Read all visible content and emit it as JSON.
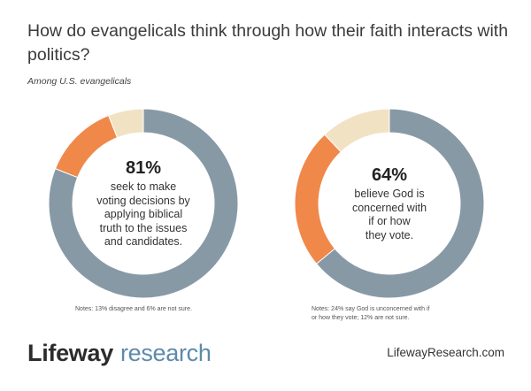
{
  "header": {
    "title": "How do evangelicals think through how their faith interacts with politics?",
    "subtitle": "Among U.S. evangelicals"
  },
  "chart_data": [
    {
      "type": "pie",
      "donut": true,
      "segments": [
        {
          "label": "",
          "value": 81,
          "color": "#8899a6"
        },
        {
          "label": "",
          "value": 13,
          "color": "#f0884a"
        },
        {
          "label": "",
          "value": 6,
          "color": "#f2e2c4"
        }
      ],
      "center_value": "81%",
      "center_lines": [
        "seek to make",
        "voting decisions by",
        "applying biblical",
        "truth to the issues",
        "and candidates."
      ],
      "note_lines": [
        "Notes: 13% disagree and 6% are not sure."
      ]
    },
    {
      "type": "pie",
      "donut": true,
      "segments": [
        {
          "label": "",
          "value": 64,
          "color": "#8899a6"
        },
        {
          "label": "",
          "value": 24,
          "color": "#f0884a"
        },
        {
          "label": "",
          "value": 12,
          "color": "#f2e2c4"
        }
      ],
      "center_value": "64%",
      "center_lines": [
        "believe God is",
        "concerned with",
        "if or how",
        "they vote."
      ],
      "note_lines": [
        "Notes: 24% say God is unconcerned with if",
        "or how they vote; 12% are not sure."
      ]
    }
  ],
  "footer": {
    "brand_part1": "Lifeway",
    "brand_part2": "research",
    "url": "LifewayResearch.com"
  }
}
